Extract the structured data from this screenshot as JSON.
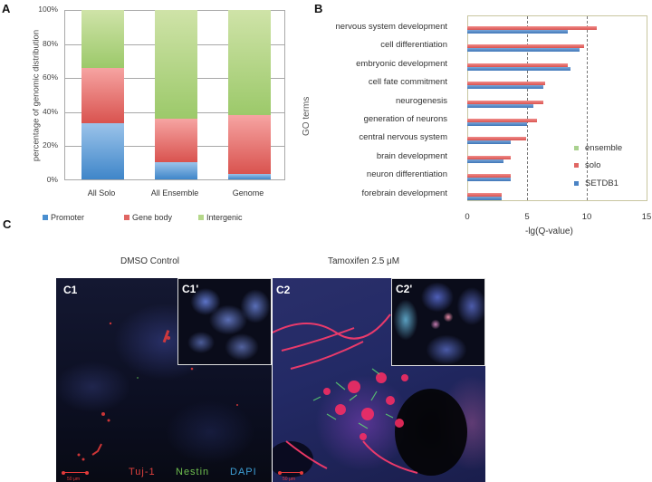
{
  "panels": {
    "A": "A",
    "B": "B",
    "C": "C"
  },
  "chart_data": [
    {
      "type": "bar",
      "stacked": true,
      "orientation": "vertical",
      "title": "",
      "xlabel": "",
      "ylabel": "percentage of genomic distribution",
      "ylim": [
        0,
        100
      ],
      "yticks": [
        "0%",
        "20%",
        "40%",
        "60%",
        "80%",
        "100%"
      ],
      "categories": [
        "All Solo",
        "All Ensemble",
        "Genome"
      ],
      "series": [
        {
          "name": "Promoter",
          "color": "#4a8fd0",
          "values": [
            33,
            10,
            3
          ]
        },
        {
          "name": "Gene body",
          "color": "#e06663",
          "values": [
            33,
            26,
            35
          ]
        },
        {
          "name": "Intergenic",
          "color": "#b5d88a",
          "values": [
            34,
            64,
            62
          ]
        }
      ],
      "grid": true,
      "legend_position": "bottom"
    },
    {
      "type": "bar",
      "orientation": "horizontal",
      "title": "",
      "xlabel": "-lg(Q-value)",
      "ylabel": "GO terms",
      "xlim": [
        0,
        15
      ],
      "xticks": [
        "0",
        "5",
        "10",
        "15"
      ],
      "reference_lines": [
        5,
        10
      ],
      "categories": [
        "nervous system development",
        "cell differentiation",
        "embryonic development",
        "cell fate commitment",
        "neurogenesis",
        "generation of neurons",
        "central nervous system",
        "brain development",
        "neuron differentiation",
        "forebrain development"
      ],
      "series": [
        {
          "name": "ensemble",
          "color": "#a9d18e",
          "values": [
            null,
            null,
            null,
            null,
            null,
            null,
            null,
            null,
            null,
            null
          ]
        },
        {
          "name": "solo",
          "color": "#e06663",
          "values": [
            10.8,
            9.8,
            8.4,
            6.5,
            6.4,
            5.8,
            4.9,
            3.6,
            3.6,
            2.9
          ]
        },
        {
          "name": "SETDB1",
          "color": "#4a83c4",
          "values": [
            8.4,
            9.4,
            8.6,
            6.4,
            5.5,
            5.0,
            3.6,
            3.0,
            3.6,
            2.9
          ]
        }
      ],
      "legend_position": "inside-right"
    }
  ],
  "panelC": {
    "left_title": "DMSO Control",
    "right_title": "Tamoxifen 2.5 μM",
    "labels": {
      "c1": "C1",
      "c1p": "C1'",
      "c2": "C2",
      "c2p": "C2'"
    },
    "scale": "50 μm",
    "stains": [
      {
        "name": "Tuj-1",
        "color": "#e0413e"
      },
      {
        "name": "Nestin",
        "color": "#6fbf4f"
      },
      {
        "name": "DAPI",
        "color": "#3e9fd6"
      }
    ]
  }
}
